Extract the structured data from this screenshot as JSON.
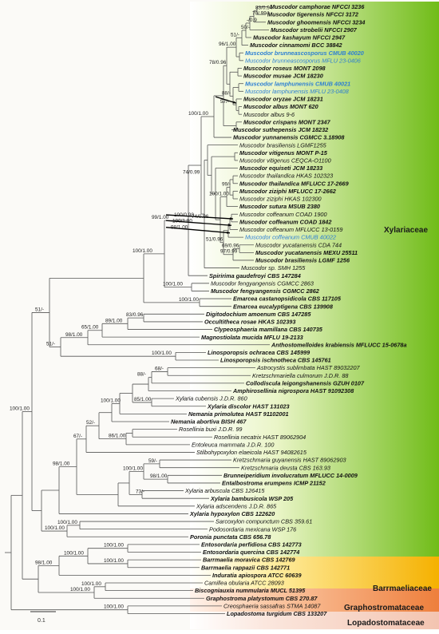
{
  "families": [
    {
      "name": "Xylariaceae",
      "color": "#7cc31f"
    },
    {
      "name": "Barrmaeliaceae",
      "color": "#f5b800"
    },
    {
      "name": "Graphostromataceae",
      "color": "#f08a4c"
    },
    {
      "name": "Lopadostomataceae",
      "color": "#f4cfc0"
    }
  ],
  "scale_bar": "0.1",
  "taxa": [
    {
      "label": "Muscodor camphorae NFCCI 3236",
      "bold": true,
      "highlight": false
    },
    {
      "label": "Muscodor tigerensis NFCCI 3172",
      "bold": true,
      "highlight": false
    },
    {
      "label": "Muscodor ghoomensis NFCCI 3234",
      "bold": true,
      "highlight": false
    },
    {
      "label": "Muscodor strobelii NFCCI 2907",
      "bold": true,
      "highlight": false
    },
    {
      "label": "Muscodor kashayum NFCCI 2947",
      "bold": true,
      "highlight": false
    },
    {
      "label": "Muscodor cinnamomi BCC 38842",
      "bold": true,
      "highlight": false
    },
    {
      "label": "Muscodor brunneascosporus CMUB 40020",
      "bold": true,
      "highlight": true
    },
    {
      "label": "Muscodor brunneascosporus MFLU 23-0406",
      "bold": false,
      "highlight": true
    },
    {
      "label": "Muscodor roseus MONT 2098",
      "bold": true,
      "highlight": false
    },
    {
      "label": "Muscodor musae JCM 18230",
      "bold": true,
      "highlight": false
    },
    {
      "label": "Muscodor lamphunensis CMUB 40021",
      "bold": true,
      "highlight": true
    },
    {
      "label": "Muscodor lamphunensis MFLU 23-0408",
      "bold": false,
      "highlight": true
    },
    {
      "label": "Muscodor oryzae JCM 18231",
      "bold": true,
      "highlight": false
    },
    {
      "label": "Muscodor albus MONT 620",
      "bold": true,
      "highlight": false
    },
    {
      "label": "Muscodor albus 9-6",
      "bold": false,
      "highlight": false
    },
    {
      "label": "Muscodor crispans MONT 2347",
      "bold": true,
      "highlight": false
    },
    {
      "label": "Muscodor suthepensis JCM 18232",
      "bold": true,
      "highlight": false
    },
    {
      "label": "Muscodor yunnanensis CGMCC 3.18908",
      "bold": true,
      "highlight": false
    },
    {
      "label": "Muscodor brasiliensis LGMF1255",
      "bold": false,
      "highlight": false
    },
    {
      "label": "Muscodor vitigenus MONT P-15",
      "bold": true,
      "highlight": false
    },
    {
      "label": "Muscodor vitigenus CEQCA-O1100",
      "bold": false,
      "highlight": false
    },
    {
      "label": "Muscodor equiseti JCM 18233",
      "bold": true,
      "highlight": false
    },
    {
      "label": "Muscodor thailandica HKAS 102323",
      "bold": false,
      "highlight": false
    },
    {
      "label": "Muscodor thailandica MFLUCC 17-2669",
      "bold": true,
      "highlight": false
    },
    {
      "label": "Muscodor ziziphi MFLUCC 17-2662",
      "bold": true,
      "highlight": false
    },
    {
      "label": "Muscodor ziziphi HKAS 102300",
      "bold": false,
      "highlight": false
    },
    {
      "label": "Muscodor sutura MSUB 2380",
      "bold": true,
      "highlight": false
    },
    {
      "label": "Muscodor coffeanum COAD 1900",
      "bold": false,
      "highlight": false
    },
    {
      "label": "Muscodor coffeanum COAD 1842",
      "bold": true,
      "highlight": false
    },
    {
      "label": "Muscodor coffeanum MFLUCC 13-0159",
      "bold": false,
      "highlight": false
    },
    {
      "label": "Muscodor coffeanum CMUB 40022",
      "bold": false,
      "highlight": true
    },
    {
      "label": "Muscodor yucatanensis CDA 744",
      "bold": false,
      "highlight": false
    },
    {
      "label": "Muscodor yucatanensis MEXU 25511",
      "bold": true,
      "highlight": false
    },
    {
      "label": "Muscodor brasiliensis LGMF 1256",
      "bold": true,
      "highlight": false
    },
    {
      "label": "Muscodor sp. SMH 1255",
      "bold": false,
      "highlight": false
    },
    {
      "label": "Spiririma gaudefroyi CBS 147284",
      "bold": true,
      "highlight": false
    },
    {
      "label": "Muscodor fengyangensis CGMCC 2863",
      "bold": false,
      "highlight": false
    },
    {
      "label": "Muscodor fengyangensis CGMCC 2862",
      "bold": true,
      "highlight": false
    },
    {
      "label": "Emarcea castanopsidicola CBS 117105",
      "bold": true,
      "highlight": false
    },
    {
      "label": "Emarcea eucalyptigena CBS 139908",
      "bold": true,
      "highlight": false
    },
    {
      "label": "Digitodochium amoenum CBS 147285",
      "bold": true,
      "highlight": false
    },
    {
      "label": "Occultitheca rosae HKAS 102393",
      "bold": true,
      "highlight": false
    },
    {
      "label": "Clypeosphaeria mamillana CBS 140735",
      "bold": true,
      "highlight": false
    },
    {
      "label": "Magnostiolata mucida MFLU 19-2133",
      "bold": true,
      "highlight": false
    },
    {
      "label": "Anthostomelloides krabiensis MFLUCC 15-0678a",
      "bold": true,
      "highlight": false
    },
    {
      "label": "Linosporopsis ochracea CBS 145999",
      "bold": true,
      "highlight": false
    },
    {
      "label": "Linosporopsis ischnotheca CBS 145761",
      "bold": true,
      "highlight": false
    },
    {
      "label": "Astrocystis sublimbata HAST 89032207",
      "bold": false,
      "highlight": false
    },
    {
      "label": "Kretzschmariella culmorum J.D.R. 88",
      "bold": false,
      "highlight": false
    },
    {
      "label": "Collodiscula leigongshanensis GZUH 0107",
      "bold": true,
      "highlight": false
    },
    {
      "label": "Amphirosellinia nigrospora HAST 91092308",
      "bold": true,
      "highlight": false
    },
    {
      "label": "Xylaria cubensis J.D.R. 860",
      "bold": false,
      "highlight": false
    },
    {
      "label": "Xylaria discolor HAST 131023",
      "bold": true,
      "highlight": false
    },
    {
      "label": "Nemania primolutea HAST 91102001",
      "bold": true,
      "highlight": false
    },
    {
      "label": "Nemania abortiva BISH 467",
      "bold": true,
      "highlight": false
    },
    {
      "label": "Rosellinia buxi J.D.R. 99",
      "bold": false,
      "highlight": false
    },
    {
      "label": "Rosellinia necatrix HAST 89062904",
      "bold": false,
      "highlight": false
    },
    {
      "label": "Entoleuca mammata J.D.R. 100",
      "bold": false,
      "highlight": false
    },
    {
      "label": "Stilbohypoxylon elaeicola HAST 94082615",
      "bold": false,
      "highlight": false
    },
    {
      "label": "Kretzschmaria guyanensis HAST 89062903",
      "bold": false,
      "highlight": false
    },
    {
      "label": "Kretzschmaria deusta CBS 163.93",
      "bold": false,
      "highlight": false
    },
    {
      "label": "Brunneiperidium involucratum MFLUCC 14-0009",
      "bold": true,
      "highlight": false
    },
    {
      "label": "Entalbostroma erumpens ICMP 21152",
      "bold": true,
      "highlight": false
    },
    {
      "label": "Xylaria arbuscula CBS 126415",
      "bold": false,
      "highlight": false
    },
    {
      "label": "Xylaria bambusicola WSP 205",
      "bold": true,
      "highlight": false
    },
    {
      "label": "Xylaria adscendens J.D.R. 865",
      "bold": false,
      "highlight": false
    },
    {
      "label": "Xylaria hypoxylon CBS 122620",
      "bold": true,
      "highlight": false
    },
    {
      "label": "Sarcoxylon compunctum CBS 359.61",
      "bold": false,
      "highlight": false
    },
    {
      "label": "Podosordaria mexicana WSP 176",
      "bold": false,
      "highlight": false
    },
    {
      "label": "Poronia punctata CBS 656.78",
      "bold": true,
      "highlight": false
    },
    {
      "label": "Entosordaria perfidiosa CBS 142773",
      "bold": true,
      "highlight": false
    },
    {
      "label": "Entosordaria quercina CBS 142774",
      "bold": true,
      "highlight": false
    },
    {
      "label": "Barrmaelia moravica CBS 142769",
      "bold": true,
      "highlight": false
    },
    {
      "label": "Barrmaelia rappazii CBS 142771",
      "bold": true,
      "highlight": false
    },
    {
      "label": "Induratia apiospora ATCC 60639",
      "bold": true,
      "highlight": false
    },
    {
      "label": "Camillea obularia ATCC 28093",
      "bold": false,
      "highlight": false
    },
    {
      "label": "Biscogniauxia nummularia MUCL 51395",
      "bold": true,
      "highlight": false
    },
    {
      "label": "Graphostroma platystomum CBS 270.87",
      "bold": true,
      "highlight": false
    },
    {
      "label": "Creosphaeria sassafras STMA 14087",
      "bold": false,
      "highlight": false
    },
    {
      "label": "Lopadostoma turgidum CBS 133207",
      "bold": true,
      "highlight": false
    }
  ],
  "support_values": [
    "83/0.94",
    "70/.994",
    "-/0.9",
    "50/-",
    "51/-",
    "96/1.00",
    "57/-",
    "88/-",
    "78/0.96",
    "100/1.00",
    "99/1.00",
    "100/1.00",
    "99/-",
    "100/0.98",
    "100/1.00",
    "98/1.00",
    "51/0.96",
    "74/0.96",
    "69/0.96",
    "97/0.99",
    "74/0.99",
    "100/1.00",
    "100/1.00",
    "100/1.00",
    "51/-",
    "83/0.96",
    "89/1.00",
    "65/1.00",
    "98/1.00",
    "51/-",
    "100/1.00",
    "68/-",
    "88/-",
    "85/1.00",
    "100/1.00",
    "52/-",
    "67/-",
    "86/1.00",
    "59/-",
    "98/1.00",
    "100/1.00",
    "73/-",
    "98/1.00",
    "100/1.00",
    "100/1.00",
    "100/1.00",
    "100/1.00",
    "100/1.00",
    "98/1.00",
    "100/1.00",
    "100/1.00",
    "100/1.00",
    "100/1.00"
  ]
}
